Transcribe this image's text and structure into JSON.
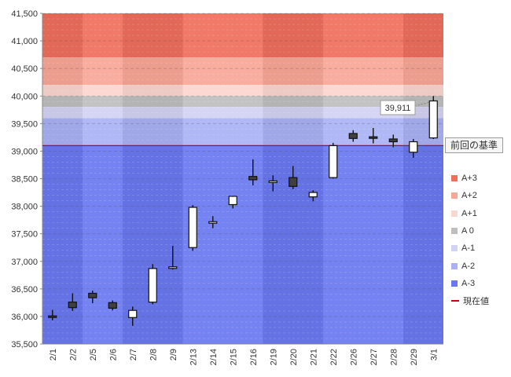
{
  "chart_data": {
    "type": "candlestick",
    "ylim": [
      35500,
      41500
    ],
    "yticks": [
      "35,500",
      "36,000",
      "36,500",
      "37,000",
      "37,500",
      "38,000",
      "38,500",
      "39,000",
      "39,500",
      "40,000",
      "40,500",
      "41,000",
      "41,500"
    ],
    "ytick_values": [
      35500,
      36000,
      36500,
      37000,
      37500,
      38000,
      38500,
      39000,
      39500,
      40000,
      40500,
      41000,
      41500
    ],
    "categories": [
      "2/1",
      "2/2",
      "2/5",
      "2/6",
      "2/7",
      "2/8",
      "2/9",
      "2/13",
      "2/14",
      "2/15",
      "2/16",
      "2/19",
      "2/20",
      "2/21",
      "2/22",
      "2/26",
      "2/27",
      "2/28",
      "2/29",
      "3/1"
    ],
    "ohlc": [
      {
        "o": 36010,
        "h": 36120,
        "l": 35930,
        "c": 35990
      },
      {
        "o": 36260,
        "h": 36420,
        "l": 36100,
        "c": 36160
      },
      {
        "o": 36420,
        "h": 36470,
        "l": 36240,
        "c": 36340
      },
      {
        "o": 36250,
        "h": 36290,
        "l": 36110,
        "c": 36150
      },
      {
        "o": 35980,
        "h": 36180,
        "l": 35830,
        "c": 36110
      },
      {
        "o": 36260,
        "h": 36950,
        "l": 36220,
        "c": 36870
      },
      {
        "o": 36880,
        "h": 37280,
        "l": 36850,
        "c": 36900
      },
      {
        "o": 37250,
        "h": 38020,
        "l": 37190,
        "c": 37980
      },
      {
        "o": 37710,
        "h": 37820,
        "l": 37600,
        "c": 37720
      },
      {
        "o": 38030,
        "h": 38190,
        "l": 37960,
        "c": 38180
      },
      {
        "o": 38540,
        "h": 38850,
        "l": 38380,
        "c": 38480
      },
      {
        "o": 38450,
        "h": 38560,
        "l": 38270,
        "c": 38460
      },
      {
        "o": 38520,
        "h": 38730,
        "l": 38310,
        "c": 38360
      },
      {
        "o": 38170,
        "h": 38290,
        "l": 38090,
        "c": 38250
      },
      {
        "o": 38520,
        "h": 39150,
        "l": 38500,
        "c": 39100
      },
      {
        "o": 39320,
        "h": 39380,
        "l": 39170,
        "c": 39230
      },
      {
        "o": 39260,
        "h": 39420,
        "l": 39140,
        "c": 39240
      },
      {
        "o": 39220,
        "h": 39300,
        "l": 39070,
        "c": 39170
      },
      {
        "o": 38980,
        "h": 39220,
        "l": 38880,
        "c": 39170
      },
      {
        "o": 39240,
        "h": 40000,
        "l": 39220,
        "c": 39911
      }
    ],
    "bands": [
      {
        "name": "A+3",
        "from": 40700,
        "to": 41500,
        "color": "#ef6e5c"
      },
      {
        "name": "A+2",
        "from": 40200,
        "to": 40700,
        "color": "#f8a696"
      },
      {
        "name": "A+1",
        "from": 40000,
        "to": 40200,
        "color": "#fbd5cf"
      },
      {
        "name": "A 0",
        "from": 39800,
        "to": 40000,
        "color": "#bebebe"
      },
      {
        "name": "A-1",
        "from": 39600,
        "to": 39800,
        "color": "#d3d3f3"
      },
      {
        "name": "A-2",
        "from": 39100,
        "to": 39600,
        "color": "#aab2f5"
      },
      {
        "name": "A-3",
        "from": 35500,
        "to": 39100,
        "color": "#6a79f1"
      }
    ],
    "reference_value": 39100,
    "reference_label": "前回の基準",
    "current_value_label": "39,911",
    "legend": [
      {
        "label": "A+3",
        "color": "#ef6e5c",
        "kind": "box"
      },
      {
        "label": "A+2",
        "color": "#f8a696",
        "kind": "box"
      },
      {
        "label": "A+1",
        "color": "#fbd5cf",
        "kind": "box"
      },
      {
        "label": "A 0",
        "color": "#bebebe",
        "kind": "box"
      },
      {
        "label": "A-1",
        "color": "#d3d3f3",
        "kind": "box"
      },
      {
        "label": "A-2",
        "color": "#aab2f5",
        "kind": "box"
      },
      {
        "label": "A-3",
        "color": "#6a79f1",
        "kind": "box"
      },
      {
        "label": "現在値",
        "color": "#cc0000",
        "kind": "line"
      }
    ],
    "legend_position": "right",
    "grid": true,
    "up_color": "#ffffff",
    "down_color": "#404040"
  }
}
